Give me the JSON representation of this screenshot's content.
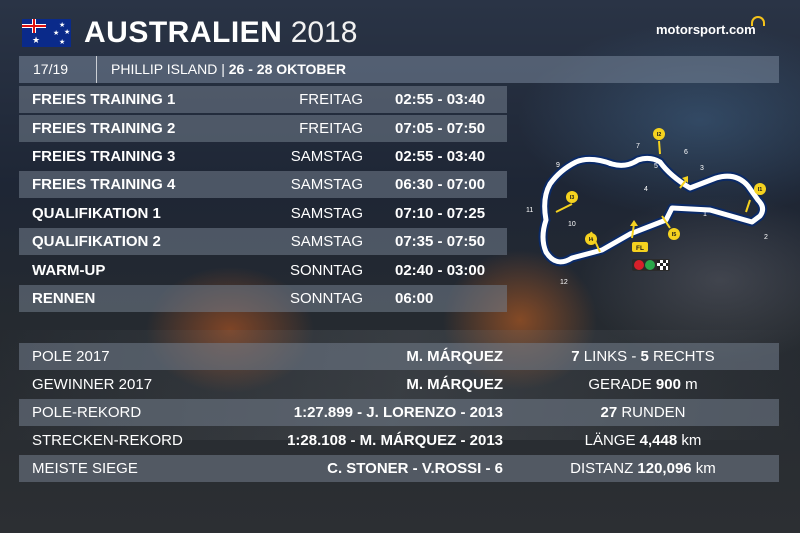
{
  "header": {
    "country": "AUSTRALIEN",
    "year": "2018",
    "logo_text": "motorsport.com"
  },
  "round": {
    "number": "17/19",
    "track": "PHILLIP ISLAND |",
    "dates": "26 - 28 OKTOBER"
  },
  "schedule": [
    {
      "session": "FREIES TRAINING 1",
      "day": "FREITAG",
      "time": "02:55 - 03:40"
    },
    {
      "session": "FREIES TRAINING 2",
      "day": "FREITAG",
      "time": "07:05 - 07:50"
    },
    {
      "session": "FREIES TRAINING 3",
      "day": "SAMSTAG",
      "time": "02:55 - 03:40"
    },
    {
      "session": "FREIES TRAINING 4",
      "day": "SAMSTAG",
      "time": "06:30 - 07:00"
    },
    {
      "session": "QUALIFIKATION 1",
      "day": "SAMSTAG",
      "time": "07:10 - 07:25"
    },
    {
      "session": "QUALIFIKATION 2",
      "day": "SAMSTAG",
      "time": "07:35 - 07:50"
    },
    {
      "session": "WARM-UP",
      "day": "SONNTAG",
      "time": "02:40 - 03:00"
    },
    {
      "session": "RENNEN",
      "day": "SONNTAG",
      "time": "06:00"
    }
  ],
  "info": [
    {
      "label": "POLE 2017",
      "value": "M. MÁRQUEZ",
      "stat_pre": "",
      "stat_bold": "7",
      "stat_mid": " LINKS - ",
      "stat_bold2": "5",
      "stat_post": " RECHTS"
    },
    {
      "label": "GEWINNER 2017",
      "value": "M. MÁRQUEZ",
      "stat_pre": "GERADE ",
      "stat_bold": "900",
      "stat_mid": " m",
      "stat_bold2": "",
      "stat_post": ""
    },
    {
      "label": "POLE-REKORD",
      "value": "1:27.899 - J. LORENZO - 2013",
      "stat_pre": "",
      "stat_bold": "27",
      "stat_mid": " RUNDEN",
      "stat_bold2": "",
      "stat_post": ""
    },
    {
      "label": "STRECKEN-REKORD",
      "value": "1:28.108 - M. MÁRQUEZ - 2013",
      "stat_pre": "LÄNGE ",
      "stat_bold": "4,448",
      "stat_mid": " km",
      "stat_bold2": "",
      "stat_post": ""
    },
    {
      "label": "MEISTE SIEGE",
      "value": "C. STONER - V.ROSSI - 6",
      "stat_pre": "DISTANZ ",
      "stat_bold": "120,096",
      "stat_mid": " km",
      "stat_bold2": "",
      "stat_post": ""
    }
  ],
  "track_map": {
    "corner_numbers": [
      "1",
      "2",
      "3",
      "4",
      "5",
      "6",
      "7",
      "8",
      "9",
      "10",
      "11",
      "12"
    ],
    "intermediates": [
      "I1",
      "I2",
      "I3",
      "I4",
      "I5"
    ],
    "finish_line_label": "FL",
    "colors": {
      "track": "#ffffff",
      "outline": "#0b2a66",
      "marker": "#f5d21f",
      "light_red": "#d8202a",
      "light_green": "#2aa84a"
    }
  }
}
